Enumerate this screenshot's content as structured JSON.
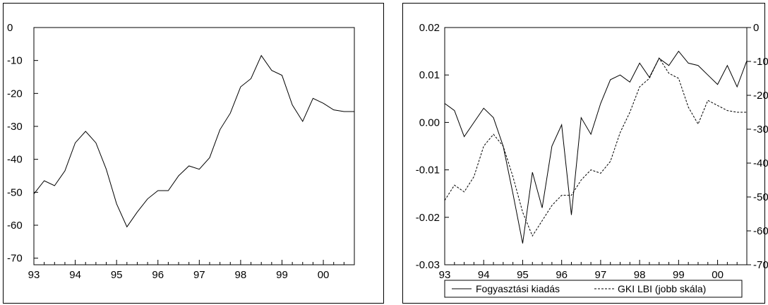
{
  "chart_data": [
    {
      "type": "line",
      "title": "",
      "xlabel": "",
      "ylabel": "",
      "x_start": 1993.0,
      "x_step": 0.25,
      "x_ticks": [
        "93",
        "94",
        "95",
        "96",
        "97",
        "98",
        "99",
        "00"
      ],
      "x_tick_values": [
        1993,
        1994,
        1995,
        1996,
        1997,
        1998,
        1999,
        2000
      ],
      "xlim": [
        1993.0,
        2000.75
      ],
      "ylim": [
        -72,
        0
      ],
      "y_ticks": [
        0,
        -10,
        -20,
        -30,
        -40,
        -50,
        -60,
        -70
      ],
      "y_tick_labels": [
        "0",
        "-10",
        "-20",
        "-30",
        "-40",
        "-50",
        "-60",
        "-70"
      ],
      "grid": false,
      "series": [
        {
          "values": [
            -50.5,
            -46.5,
            -48.0,
            -43.5,
            -35.0,
            -31.5,
            -35.0,
            -43.0,
            -53.5,
            -60.5,
            -56.0,
            -52.0,
            -49.5,
            -49.5,
            -45.0,
            -42.0,
            -43.0,
            -39.5,
            -31.0,
            -26.0,
            -18.0,
            -15.5,
            -8.5,
            -13.0,
            -14.5,
            -23.5,
            -28.5,
            -21.5,
            -23.0,
            -25.0,
            -25.5,
            -25.5
          ],
          "style": "solid",
          "color": "#000000"
        }
      ]
    },
    {
      "type": "line",
      "title": "",
      "xlabel": "",
      "ylabel": "",
      "x_start": 1993.0,
      "x_step": 0.25,
      "x_ticks": [
        "93",
        "94",
        "95",
        "96",
        "97",
        "98",
        "99",
        "00"
      ],
      "x_tick_values": [
        1993,
        1994,
        1995,
        1996,
        1997,
        1998,
        1999,
        2000
      ],
      "xlim": [
        1993.0,
        2000.75
      ],
      "ylim": [
        -0.03,
        0.02
      ],
      "y_ticks": [
        0.02,
        0.01,
        0.0,
        -0.01,
        -0.02,
        -0.03
      ],
      "y_tick_labels": [
        "0.02",
        "0.01",
        "0.00",
        "-0.01",
        "-0.02",
        "-0.03"
      ],
      "y2lim": [
        -70,
        0
      ],
      "y2_ticks": [
        0,
        -10,
        -20,
        -30,
        -40,
        -50,
        -60,
        -70
      ],
      "y2_tick_labels": [
        "0",
        "-10",
        "-20",
        "-30",
        "-40",
        "-50",
        "-60",
        "-70"
      ],
      "grid": false,
      "legend_position": "bottom",
      "series": [
        {
          "name": "Fogyasztási kiadás",
          "axis": "left",
          "style": "solid",
          "color": "#000000",
          "values": [
            0.004,
            0.0025,
            -0.003,
            0.0,
            0.003,
            0.001,
            -0.005,
            -0.015,
            -0.0255,
            -0.0105,
            -0.018,
            -0.005,
            -0.0005,
            -0.0195,
            0.001,
            -0.0025,
            0.004,
            0.009,
            0.01,
            0.0085,
            0.0125,
            0.0095,
            0.0135,
            0.012,
            0.015,
            0.0125,
            0.012,
            0.01,
            0.008,
            0.012,
            0.0075,
            0.013
          ]
        },
        {
          "name": "GKI LBI (jobb skála)",
          "axis": "right",
          "style": "dashed",
          "color": "#000000",
          "values": [
            -51.0,
            -46.5,
            -48.5,
            -44.0,
            -35.0,
            -31.5,
            -35.0,
            -44.0,
            -54.5,
            -61.5,
            -57.0,
            -52.5,
            -49.5,
            -49.5,
            -45.0,
            -42.0,
            -43.0,
            -39.5,
            -31.0,
            -25.0,
            -17.5,
            -15.0,
            -9.0,
            -13.5,
            -15.0,
            -23.5,
            -28.5,
            -21.5,
            -23.0,
            -24.5,
            -25.0,
            -25.0
          ]
        }
      ]
    }
  ]
}
